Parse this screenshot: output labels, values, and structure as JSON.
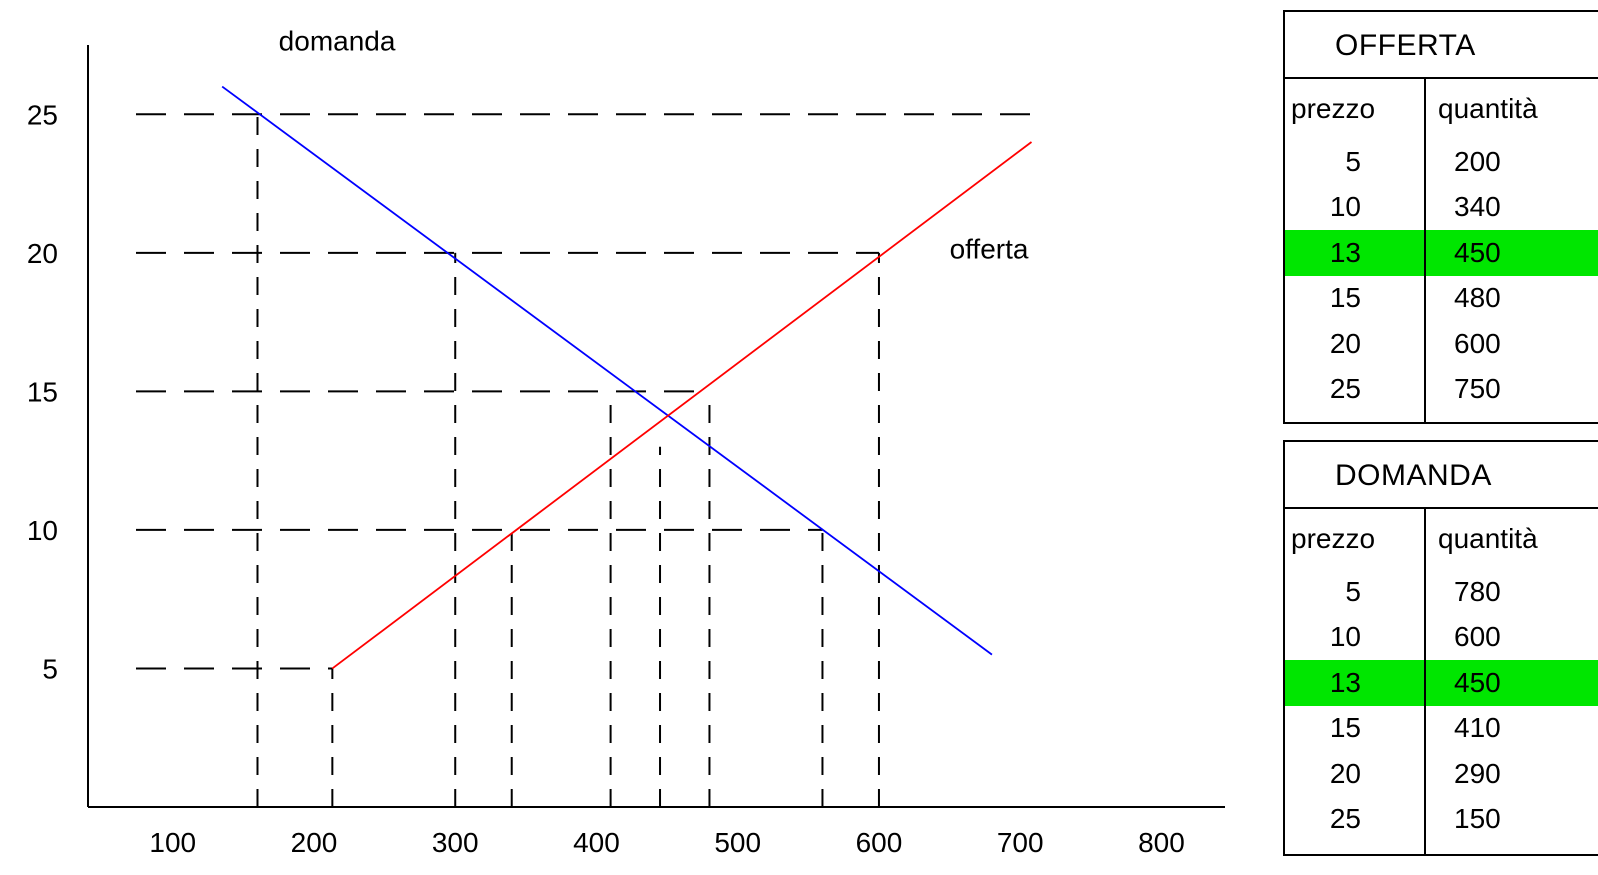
{
  "chart_data": {
    "type": "line",
    "x_ticks": [
      100,
      200,
      300,
      400,
      500,
      600,
      700,
      800
    ],
    "y_ticks": [
      5,
      10,
      15,
      20,
      25
    ],
    "xlim": [
      40,
      845
    ],
    "ylim": [
      0,
      27.5
    ],
    "series": [
      {
        "name": "domanda",
        "color": "#0000ff",
        "points": [
          {
            "x": 135,
            "y": 26
          },
          {
            "x": 680,
            "y": 5.5
          }
        ]
      },
      {
        "name": "offerta",
        "color": "#ff0000",
        "points": [
          {
            "x": 213,
            "y": 5
          },
          {
            "x": 708,
            "y": 24
          }
        ]
      }
    ],
    "guides": {
      "horizontal": [
        {
          "y": 25,
          "x_to": 708
        },
        {
          "y": 20,
          "x_to": 600
        },
        {
          "y": 15,
          "x_to": 480
        },
        {
          "y": 10,
          "x_to": 560
        },
        {
          "y": 5,
          "x_to": 213
        }
      ],
      "vertical": [
        {
          "x": 160,
          "y_to": 25
        },
        {
          "x": 213,
          "y_to": 5
        },
        {
          "x": 300,
          "y_to": 20
        },
        {
          "x": 340,
          "y_to": 10
        },
        {
          "x": 410,
          "y_to": 15
        },
        {
          "x": 445,
          "y_to": 13
        },
        {
          "x": 480,
          "y_to": 15
        },
        {
          "x": 560,
          "y_to": 10
        },
        {
          "x": 600,
          "y_to": 20
        }
      ]
    },
    "labels": {
      "domanda": {
        "text": "domanda",
        "x": 175,
        "y": 27.3
      },
      "offerta": {
        "text": "offerta",
        "x": 650,
        "y": 19.8
      }
    },
    "grid": false,
    "legend": "none"
  },
  "tables": {
    "offerta": {
      "title": "OFFERTA",
      "col_price": "prezzo",
      "col_qty": "quantità",
      "highlight_color": "#00e600",
      "rows": [
        {
          "prezzo": "5",
          "quantita": "200",
          "highlight": false
        },
        {
          "prezzo": "10",
          "quantita": "340",
          "highlight": false
        },
        {
          "prezzo": "13",
          "quantita": "450",
          "highlight": true
        },
        {
          "prezzo": "15",
          "quantita": "480",
          "highlight": false
        },
        {
          "prezzo": "20",
          "quantita": "600",
          "highlight": false
        },
        {
          "prezzo": "25",
          "quantita": "750",
          "highlight": false
        }
      ]
    },
    "domanda": {
      "title": "DOMANDA",
      "col_price": "prezzo",
      "col_qty": "quantità",
      "highlight_color": "#00e600",
      "rows": [
        {
          "prezzo": "5",
          "quantita": "780",
          "highlight": false
        },
        {
          "prezzo": "10",
          "quantita": "600",
          "highlight": false
        },
        {
          "prezzo": "13",
          "quantita": "450",
          "highlight": true
        },
        {
          "prezzo": "15",
          "quantita": "410",
          "highlight": false
        },
        {
          "prezzo": "20",
          "quantita": "290",
          "highlight": false
        },
        {
          "prezzo": "25",
          "quantita": "150",
          "highlight": false
        }
      ]
    }
  }
}
